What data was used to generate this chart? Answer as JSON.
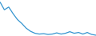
{
  "x": [
    0,
    1,
    2,
    3,
    4,
    5,
    6,
    7,
    8,
    9,
    10,
    11,
    12,
    13,
    14,
    15,
    16,
    17,
    18,
    19,
    20,
    21,
    22
  ],
  "y": [
    95,
    75,
    82,
    65,
    50,
    40,
    28,
    20,
    15,
    13,
    14,
    12,
    13,
    16,
    13,
    15,
    19,
    15,
    17,
    13,
    17,
    12,
    10
  ],
  "line_color": "#3595d0",
  "linewidth": 0.9,
  "background_color": "#ffffff"
}
